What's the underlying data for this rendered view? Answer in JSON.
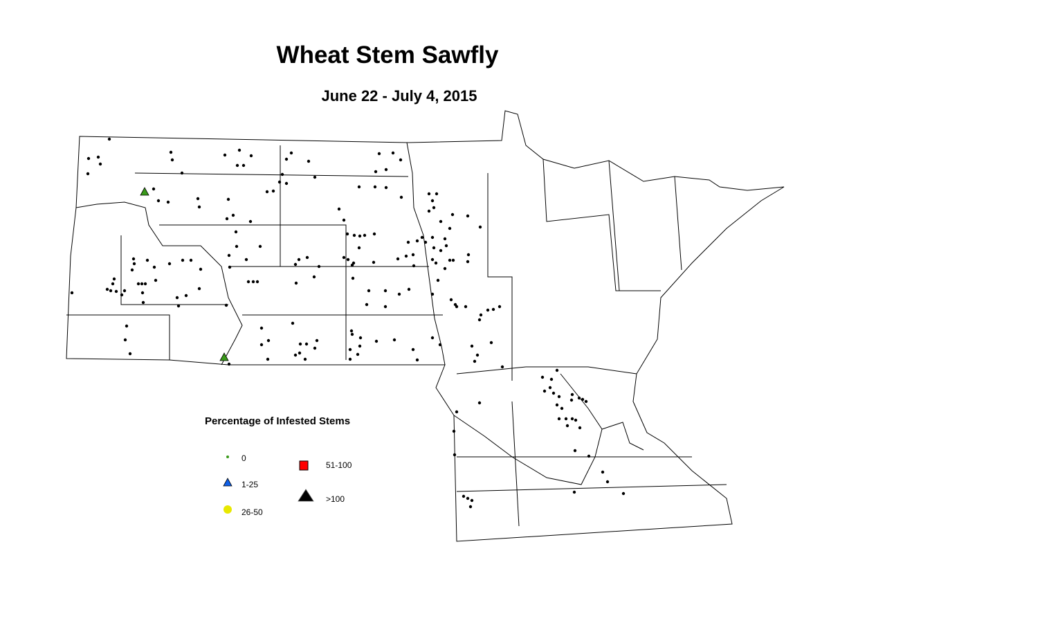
{
  "title": "Wheat Stem Sawfly",
  "subtitle": "June 22 - July 4, 2015",
  "legend": {
    "title": "Percentage of Infested Stems",
    "items": [
      {
        "label": "0",
        "symbol": "dot",
        "color": "#000000"
      },
      {
        "label": "1-25",
        "symbol": "triangle",
        "color": "#3a9a1a"
      },
      {
        "label": "26-50",
        "symbol": "circle",
        "color": "#1060e8"
      },
      {
        "label": "51-100",
        "symbol": "square",
        "color": "#e8e800"
      },
      {
        "label": ">100",
        "symbol": "triangle",
        "color": "#ff0000"
      }
    ]
  }
}
